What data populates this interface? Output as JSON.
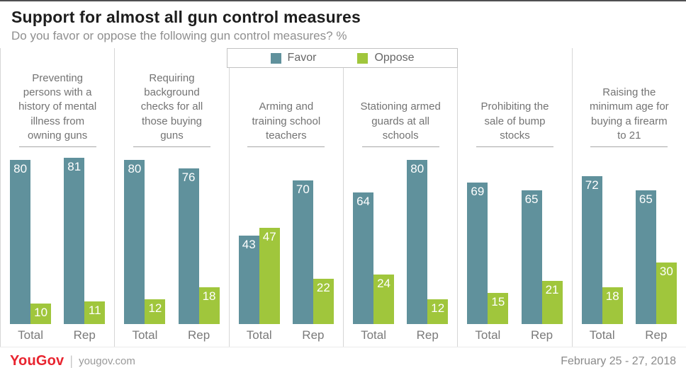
{
  "header": {
    "title": "Support for almost all gun control measures",
    "subtitle": "Do you favor or oppose the following gun control measures? %"
  },
  "footer": {
    "brand": "YouGov",
    "separator": "|",
    "site": "yougov.com",
    "date": "February 25 - 27, 2018"
  },
  "chart_data": {
    "type": "bar",
    "title": "Support for almost all gun control measures",
    "subtitle": "Do you favor or oppose the following gun control measures? %",
    "legend": [
      "Favor",
      "Oppose"
    ],
    "legend_position": "top",
    "colors": {
      "favor": "#60919c",
      "oppose": "#a0c63c"
    },
    "groups": [
      "Total",
      "Rep"
    ],
    "ylim": [
      0,
      85
    ],
    "grid": false,
    "panels": [
      {
        "label": "Preventing persons with a history of mental illness from owning guns",
        "groups": [
          {
            "favor": 80,
            "oppose": 10
          },
          {
            "favor": 81,
            "oppose": 11
          }
        ]
      },
      {
        "label": "Requiring background checks for all those buying guns",
        "groups": [
          {
            "favor": 80,
            "oppose": 12
          },
          {
            "favor": 76,
            "oppose": 18
          }
        ]
      },
      {
        "label": "Arming and training school teachers",
        "groups": [
          {
            "favor": 43,
            "oppose": 47
          },
          {
            "favor": 70,
            "oppose": 22
          }
        ]
      },
      {
        "label": "Stationing armed guards at all schools",
        "groups": [
          {
            "favor": 64,
            "oppose": 24
          },
          {
            "favor": 80,
            "oppose": 12
          }
        ]
      },
      {
        "label": "Prohibiting the sale of bump stocks",
        "groups": [
          {
            "favor": 69,
            "oppose": 15
          },
          {
            "favor": 65,
            "oppose": 21
          }
        ]
      },
      {
        "label": "Raising the minimum age for buying a firearm to 21",
        "groups": [
          {
            "favor": 72,
            "oppose": 18
          },
          {
            "favor": 65,
            "oppose": 30
          }
        ]
      }
    ]
  }
}
